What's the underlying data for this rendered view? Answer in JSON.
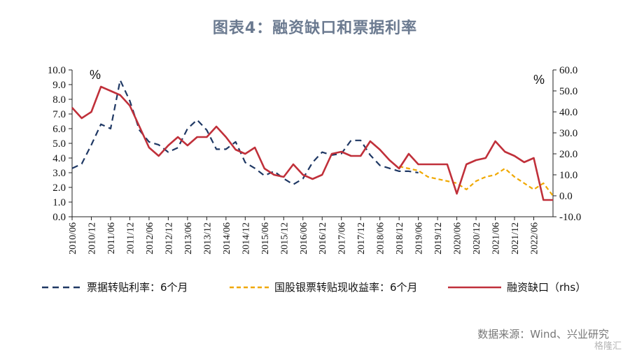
{
  "title": "图表4：融资缺口和票据利率",
  "source": "数据来源：Wind、兴业研究",
  "watermark": "格隆汇",
  "chart_data": {
    "type": "line",
    "left_unit": "%",
    "right_unit": "%",
    "ylim_left": [
      0,
      10
    ],
    "ylim_right": [
      -10,
      60
    ],
    "y_ticks_left": [
      "0.0",
      "1.0",
      "2.0",
      "3.0",
      "4.0",
      "5.0",
      "6.0",
      "7.0",
      "8.0",
      "9.0",
      "10.0"
    ],
    "y_ticks_right": [
      "-10.0",
      "0.0",
      "10.0",
      "20.0",
      "30.0",
      "40.0",
      "50.0",
      "60.0"
    ],
    "x_tick_labels": [
      "2010/06",
      "2010/12",
      "2011/06",
      "2011/12",
      "2012/06",
      "2012/12",
      "2013/06",
      "2013/12",
      "2014/06",
      "2014/12",
      "2015/06",
      "2015/12",
      "2016/06",
      "2016/12",
      "2017/06",
      "2017/12",
      "2018/06",
      "2018/12",
      "2019/06",
      "2019/12",
      "2020/06",
      "2020/12",
      "2021/06",
      "2021/12",
      "2022/06"
    ],
    "grid": false,
    "legend_position": "bottom",
    "series": [
      {
        "name": "票据转贴利率：6个月",
        "axis": "left",
        "style": "dashed",
        "color": "#1f3864",
        "x": [
          0,
          1,
          2,
          3,
          4,
          5,
          6,
          7,
          8,
          9,
          10,
          11,
          12,
          13,
          14,
          15,
          16,
          17,
          18,
          19,
          20,
          21,
          22,
          23,
          24,
          25,
          26,
          27,
          28,
          29,
          30,
          31,
          32,
          33,
          34,
          35,
          36
        ],
        "y": [
          3.3,
          3.6,
          4.9,
          6.3,
          6.0,
          9.3,
          7.9,
          5.9,
          5.1,
          4.9,
          4.4,
          4.7,
          6.0,
          6.6,
          5.9,
          4.6,
          4.6,
          5.1,
          3.7,
          3.3,
          2.8,
          3.1,
          2.6,
          2.2,
          2.6,
          3.7,
          4.4,
          4.2,
          4.3,
          5.2,
          5.2,
          4.2,
          3.5,
          3.3,
          3.1,
          3.1,
          3.0
        ]
      },
      {
        "name": "国股银票转贴现收益率：6个月",
        "axis": "right",
        "style": "dashed",
        "color": "#f0a800",
        "x": [
          34,
          35,
          36,
          37,
          38,
          39,
          40,
          41,
          42,
          43,
          44,
          45,
          46,
          47,
          48,
          49,
          50
        ],
        "y": [
          14,
          13,
          12,
          9,
          8,
          7,
          6,
          3,
          7,
          9,
          10,
          13,
          9,
          6,
          3,
          6,
          0
        ]
      },
      {
        "name": "融资缺口（rhs）",
        "axis": "right",
        "style": "solid",
        "color": "#c0303a",
        "x": [
          0,
          1,
          2,
          3,
          4,
          5,
          6,
          7,
          8,
          9,
          10,
          11,
          12,
          13,
          14,
          15,
          16,
          17,
          18,
          19,
          20,
          21,
          22,
          23,
          24,
          25,
          26,
          27,
          28,
          29,
          30,
          31,
          32,
          33,
          34,
          35,
          36,
          37,
          38,
          39,
          40,
          41,
          42,
          43,
          44,
          45,
          46,
          47,
          48,
          49,
          50
        ],
        "y": [
          42,
          37,
          40,
          52,
          50,
          48,
          43,
          33,
          23,
          19,
          24,
          28,
          24,
          28,
          28,
          33,
          28,
          22,
          20,
          23,
          13,
          10,
          9,
          15,
          10,
          8,
          10,
          20,
          21,
          19,
          19,
          26,
          22,
          17,
          13,
          20,
          15,
          15,
          15,
          15,
          1,
          15,
          17,
          18,
          26,
          21,
          19,
          16,
          18,
          -2,
          -2
        ]
      }
    ]
  }
}
